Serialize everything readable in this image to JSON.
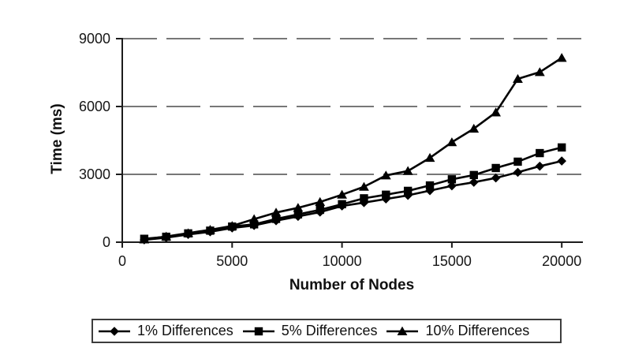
{
  "figure": {
    "background": "#ffffff",
    "series_color": "#000000",
    "axis_color": "#1c1c1c",
    "gridline_color": "#4a4a4a",
    "text_color": "#161616",
    "legend_border_color": "#3d3d3d"
  },
  "chart_data": {
    "type": "line",
    "title": "",
    "xlabel": "Number of Nodes",
    "ylabel": "Time (ms)",
    "xlim": [
      0,
      21000
    ],
    "ylim": [
      0,
      9000
    ],
    "x_ticks": [
      0,
      5000,
      10000,
      15000,
      20000
    ],
    "y_ticks": [
      0,
      3000,
      6000,
      9000
    ],
    "grid": "dashed-horizontal",
    "legend_position": "bottom",
    "x": [
      1000,
      2000,
      3000,
      4000,
      5000,
      6000,
      7000,
      8000,
      9000,
      10000,
      11000,
      12000,
      13000,
      14000,
      15000,
      16000,
      17000,
      18000,
      19000,
      20000
    ],
    "series": [
      {
        "name": "1% Differences",
        "marker": "diamond",
        "values": [
          100,
          200,
          340,
          460,
          630,
          740,
          950,
          1140,
          1330,
          1600,
          1750,
          1910,
          2070,
          2280,
          2490,
          2650,
          2840,
          3090,
          3360,
          3590
        ]
      },
      {
        "name": "5% Differences",
        "marker": "square",
        "values": [
          150,
          240,
          390,
          510,
          690,
          790,
          1030,
          1230,
          1430,
          1680,
          1940,
          2100,
          2270,
          2510,
          2780,
          2970,
          3280,
          3560,
          3940,
          4190
        ]
      },
      {
        "name": "10% Differences",
        "marker": "triangle",
        "values": [
          120,
          250,
          400,
          550,
          720,
          1020,
          1310,
          1520,
          1780,
          2100,
          2450,
          2950,
          3150,
          3730,
          4420,
          5020,
          5740,
          7220,
          7520,
          8150
        ]
      }
    ]
  }
}
